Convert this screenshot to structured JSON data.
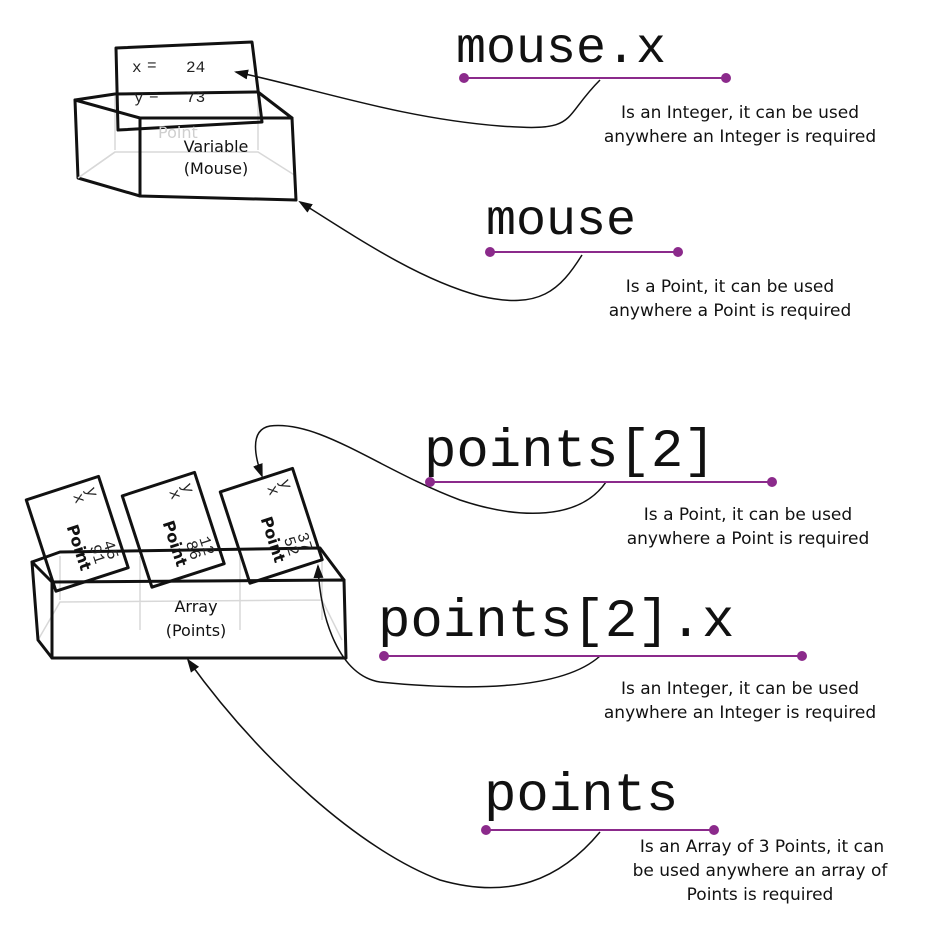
{
  "colors": {
    "accent": "#8B2A8B",
    "ink": "#111111"
  },
  "mouse_box": {
    "label_line1": "Variable",
    "label_line2": "(Mouse)",
    "faint_type": "Point",
    "card": {
      "x_label": "x",
      "x_value": "24",
      "y_label": "y",
      "y_value": "73"
    }
  },
  "array_box": {
    "label_line1": "Array",
    "label_line2": "(Points)",
    "cards": [
      {
        "title": "Point",
        "x_label": "x",
        "x_value": "91",
        "y_label": "y",
        "y_value": "45"
      },
      {
        "title": "Point",
        "x_label": "x",
        "x_value": "86",
        "y_label": "y",
        "y_value": "12"
      },
      {
        "title": "Point",
        "x_label": "x",
        "x_value": "52",
        "y_label": "y",
        "y_value": "37"
      }
    ]
  },
  "expressions": [
    {
      "code": "mouse.x",
      "note_lines": [
        "Is an Integer, it can be used",
        "anywhere an Integer is required"
      ]
    },
    {
      "code": "mouse",
      "note_lines": [
        "Is a Point, it can be used",
        "anywhere a Point is required"
      ]
    },
    {
      "code": "points[2]",
      "note_lines": [
        "Is a Point, it can be used",
        "anywhere a Point is required"
      ]
    },
    {
      "code": "points[2].x",
      "note_lines": [
        "Is an Integer, it can be used",
        "anywhere an Integer is required"
      ]
    },
    {
      "code": "points",
      "note_lines": [
        "Is an Array of 3 Points, it can",
        "be used anywhere an array of",
        "Points is required"
      ]
    }
  ]
}
